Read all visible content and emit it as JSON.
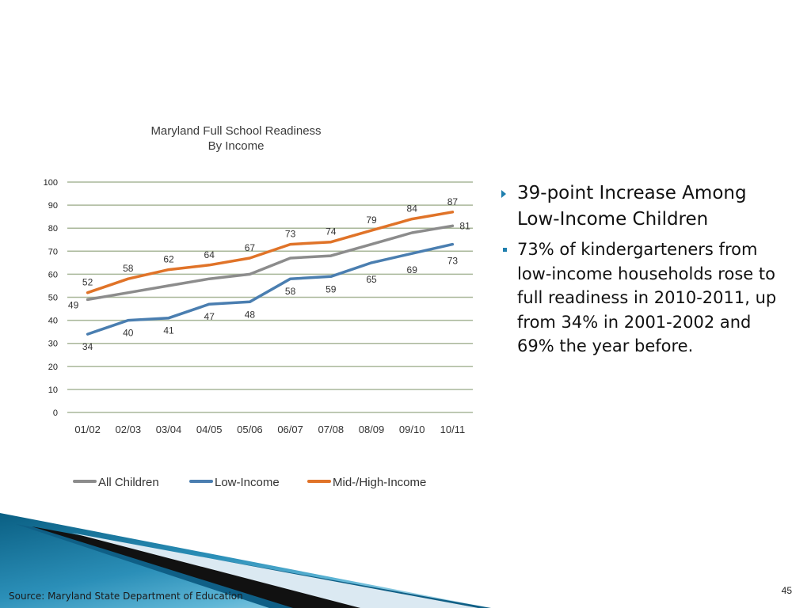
{
  "slide": {
    "page_number": "45",
    "source": "Source: Maryland State Department of Education"
  },
  "bullets": {
    "primary": "39-point Increase Among Low-Income Children",
    "secondary": "73% of kindergarteners from low-income households rose to full readiness in 2010-2011, up from 34% in 2001-2002 and 69% the year before."
  },
  "colors": {
    "all_children": "#8c8c8c",
    "low_income": "#4a7eb0",
    "mid_high_income": "#e07328",
    "gridline": "#a9b79a",
    "bullet_accent": "#1f7fae"
  },
  "chart_data": {
    "type": "line",
    "title": "Maryland Full School Readiness",
    "subtitle": "By Income",
    "xlabel": "",
    "ylabel": "",
    "ylim": [
      0,
      100
    ],
    "yticks": [
      0,
      10,
      20,
      30,
      40,
      50,
      60,
      70,
      80,
      90,
      100
    ],
    "grid": true,
    "legend_position": "bottom",
    "categories": [
      "01/02",
      "02/03",
      "03/04",
      "04/05",
      "05/06",
      "06/07",
      "07/08",
      "08/09",
      "09/10",
      "10/11"
    ],
    "series": [
      {
        "name": "All Children",
        "color": "#8c8c8c",
        "values": [
          49,
          52,
          55,
          58,
          60,
          67,
          68,
          73,
          78,
          81
        ],
        "labels": [
          "49",
          null,
          null,
          null,
          null,
          null,
          null,
          null,
          null,
          "81"
        ]
      },
      {
        "name": "Low-Income",
        "color": "#4a7eb0",
        "values": [
          34,
          40,
          41,
          47,
          48,
          58,
          59,
          65,
          69,
          73
        ],
        "labels": [
          "34",
          "40",
          "41",
          "47",
          "48",
          "58",
          "59",
          "65",
          "69",
          "73"
        ]
      },
      {
        "name": "Mid-/High-Income",
        "color": "#e07328",
        "values": [
          52,
          58,
          62,
          64,
          67,
          73,
          74,
          79,
          84,
          87
        ],
        "labels": [
          "52",
          "58",
          "62",
          "64",
          "67",
          "73",
          "74",
          "79",
          "84",
          "87"
        ]
      }
    ]
  }
}
